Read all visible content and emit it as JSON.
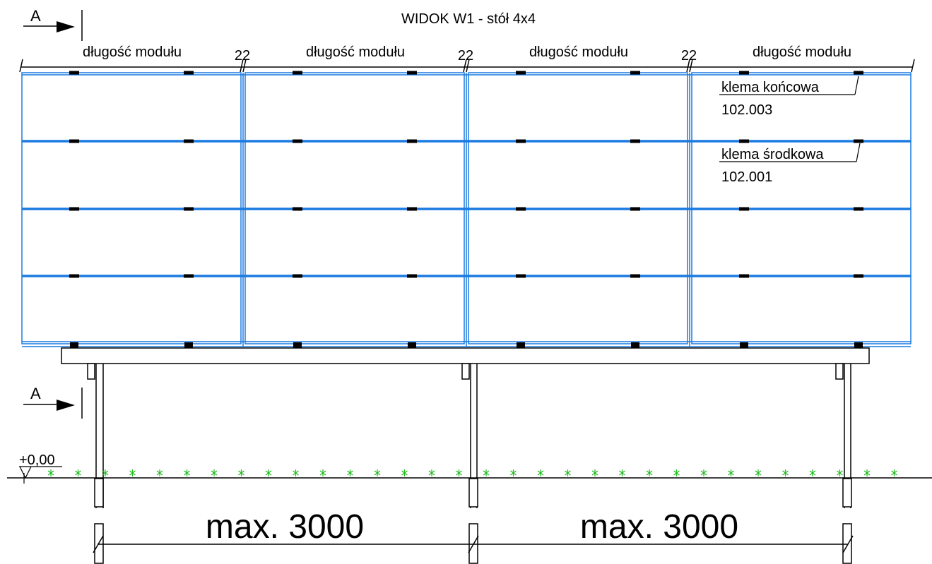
{
  "title": "WIDOK W1 - stół 4x4",
  "section_marker": {
    "letter": "A"
  },
  "module_length_label": "długość modułu",
  "module_gap_label": "22",
  "module_columns": 4,
  "module_rows": 4,
  "clamps": {
    "end": {
      "name": "klema końcowa",
      "code": "102.003"
    },
    "middle": {
      "name": "klema środkowa",
      "code": "102.001"
    }
  },
  "ground_level": "+0,00",
  "spans": [
    "max. 3000",
    "max. 3000"
  ],
  "colors": {
    "module": "#1a7ae0",
    "line": "#000000",
    "grass": "#22bb22",
    "background": "#ffffff"
  }
}
